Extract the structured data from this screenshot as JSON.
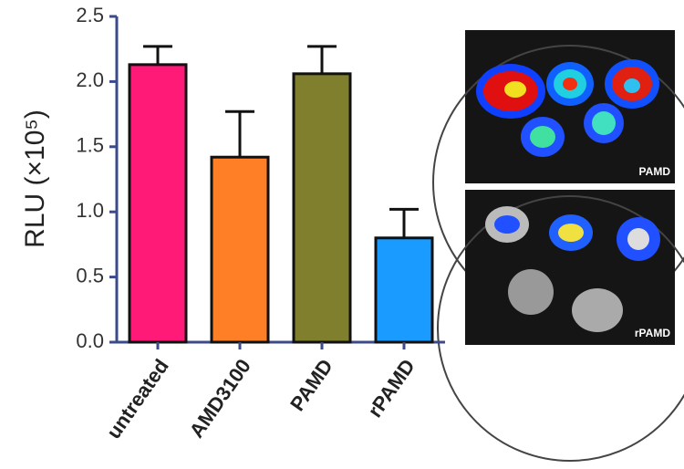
{
  "chart_data": {
    "type": "bar",
    "y_label": "RLU (×10⁵)",
    "categories": [
      "untreated",
      "AMD3100",
      "PAMD",
      "rPAMD"
    ],
    "values": [
      2.13,
      1.42,
      2.06,
      0.8
    ],
    "errors": [
      0.14,
      0.35,
      0.21,
      0.22
    ],
    "colors": [
      "#ff1a78",
      "#ff7f27",
      "#7f7f2e",
      "#1a9bff"
    ],
    "ylim": [
      0,
      2.5
    ],
    "yticks": [
      {
        "value": 0,
        "label": "0.0"
      },
      0.5,
      {
        "value": 1,
        "label": "1.0"
      },
      1.5,
      {
        "value": 2,
        "label": "2.0"
      },
      2.5
    ]
  },
  "images": [
    {
      "label": "PAMD"
    },
    {
      "label": "rPAMD"
    }
  ]
}
